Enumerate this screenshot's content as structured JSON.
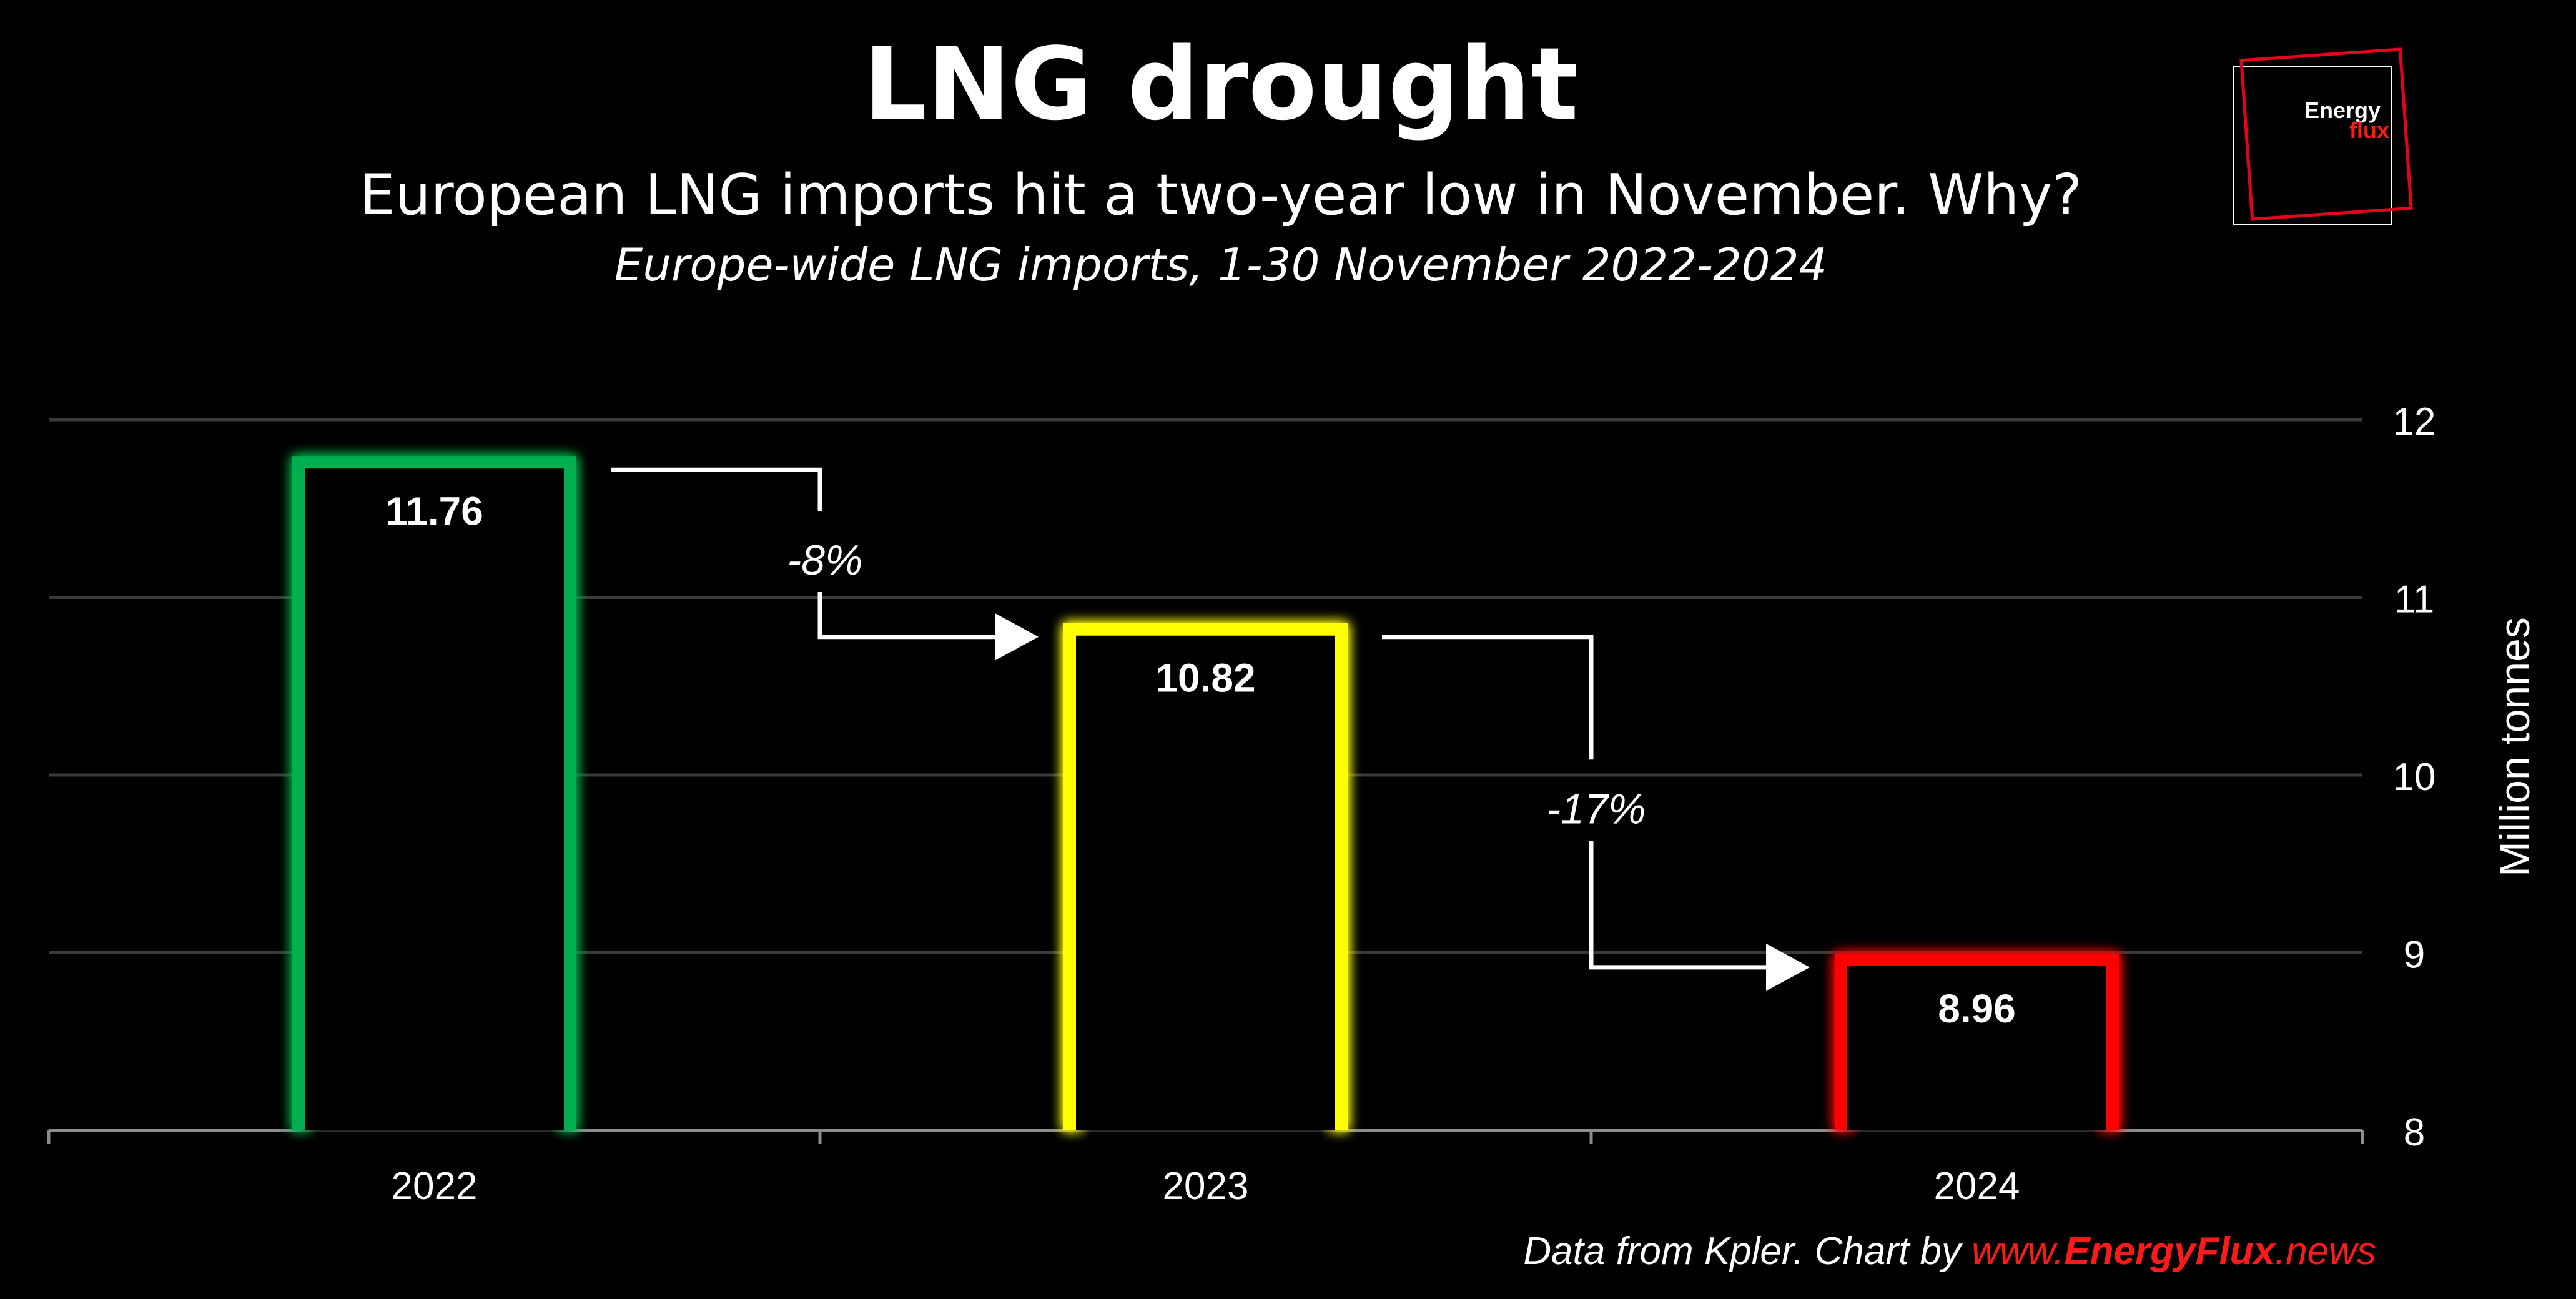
{
  "header": {
    "title": "LNG drought",
    "subtitle": "European LNG imports hit a two-year low in November. Why?",
    "description": "Europe-wide LNG imports, 1-30 November 2022-2024"
  },
  "logo": {
    "line1": "Energy",
    "line2": "flux"
  },
  "credit": {
    "prefix": "Data from Kpler. Chart by ",
    "link_pre": "www.",
    "link_brand": "EnergyFlux",
    "link_post": ".news"
  },
  "chart_data": {
    "type": "bar",
    "categories": [
      "2022",
      "2023",
      "2024"
    ],
    "values": [
      11.76,
      10.82,
      8.96
    ],
    "data_labels": [
      "11.76",
      "10.82",
      "8.96"
    ],
    "bar_colors": [
      "#00b050",
      "#ffff00",
      "#ff0000"
    ],
    "ylabel": "Million tonnes",
    "ylim": [
      8,
      12
    ],
    "yticks": [
      8,
      9,
      10,
      11,
      12
    ],
    "y_axis_side": "right",
    "grid": true,
    "change_annotations": [
      {
        "from": "2022",
        "to": "2023",
        "label": "-8%"
      },
      {
        "from": "2023",
        "to": "2024",
        "label": "-17%"
      }
    ]
  }
}
